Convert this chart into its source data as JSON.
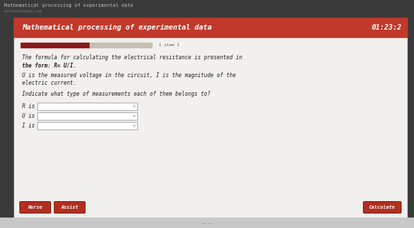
{
  "bg_top_bar": "#3a3a3a",
  "bg_top_text": "Mathematical processing of experimental data",
  "bg_top_small": "onlinetestpad.com",
  "header_bg": "#c0392b",
  "header_text": "Mathematical processing of experimental data",
  "header_timer": "01:23:2",
  "main_bg": "#e8e6e2",
  "progress_bar_filled": "#8b1a1a",
  "progress_bar_empty": "#c8bfb5",
  "progress_label": "1 item 1",
  "body_line1": "The formula for calculating the electrical resistance is presented in",
  "body_line2": "the form: R= U/I.",
  "body_line3": "U is the measured voltage in the circuit, I is the magnitude of the",
  "body_line4": "electric current.",
  "body_line5": "Indicate what type of measurements each of them belongs to?",
  "dropdown_labels": [
    "R is",
    "U is",
    "I is"
  ],
  "btn_left1": "Nurse",
  "btn_left2": "Assist",
  "btn_right": "Calculate",
  "btn_color": "#b03020",
  "dropdown_box_color": "#ffffff",
  "dropdown_border": "#999999",
  "card_bg": "#f2f0ec",
  "card_border": "#cccccc"
}
